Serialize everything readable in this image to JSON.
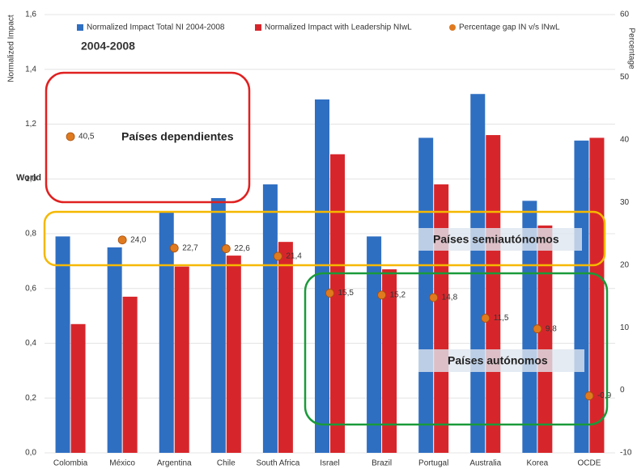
{
  "chart_data": {
    "type": "bar",
    "title": "2004-2008",
    "ylabel": "Normalized Impact",
    "y2label": "Percentage",
    "annotations": [
      "World",
      "Países dependientes",
      "Países semiautónomos",
      "Países autónomos"
    ],
    "categories": [
      "Colombia",
      "México",
      "Argentina",
      "Chile",
      "South Africa",
      "Israel",
      "Brazil",
      "Portugal",
      "Australia",
      "Korea",
      "OCDE"
    ],
    "series": [
      {
        "name": "Normalized Impact Total NI 2004-2008",
        "color": "#2f6fc2",
        "values": [
          0.79,
          0.75,
          0.88,
          0.93,
          0.98,
          1.29,
          0.79,
          1.15,
          1.31,
          0.92,
          1.14
        ]
      },
      {
        "name": "Normalized Impact with Leadership NIwL",
        "color": "#d7262b",
        "values": [
          0.47,
          0.57,
          0.68,
          0.72,
          0.77,
          1.09,
          0.67,
          0.98,
          1.16,
          0.83,
          1.15
        ]
      },
      {
        "name": "Percentage gap IN v/s INwL",
        "color": "#e07a1f",
        "type": "scatter",
        "axis": "y2",
        "values": [
          40.5,
          24.0,
          22.7,
          22.6,
          21.4,
          15.5,
          15.2,
          14.8,
          11.5,
          9.8,
          -0.9
        ],
        "value_labels": [
          "40,5",
          "24,0",
          "22,7",
          "22,6",
          "21,4",
          "15,5",
          "15,2",
          "14,8",
          "11,5",
          "9,8",
          "-0,9"
        ]
      }
    ],
    "ylim": [
      0,
      1.6
    ],
    "yticks": [
      {
        "value": 0,
        "label": "0,0"
      },
      {
        "value": 0.2,
        "label": "0,2"
      },
      {
        "value": 0.4,
        "label": "0,4"
      },
      {
        "value": 0.6,
        "label": "0,6"
      },
      {
        "value": 0.8,
        "label": "0,8"
      },
      {
        "value": 1.0,
        "label": "1,0"
      },
      {
        "value": 1.2,
        "label": "1,2"
      },
      {
        "value": 1.4,
        "label": "1,4"
      },
      {
        "value": 1.6,
        "label": "1,6"
      }
    ],
    "y2lim": [
      -10,
      60
    ],
    "y2ticks": [
      -10,
      0,
      10,
      20,
      30,
      40,
      50,
      60
    ],
    "grid": true
  }
}
